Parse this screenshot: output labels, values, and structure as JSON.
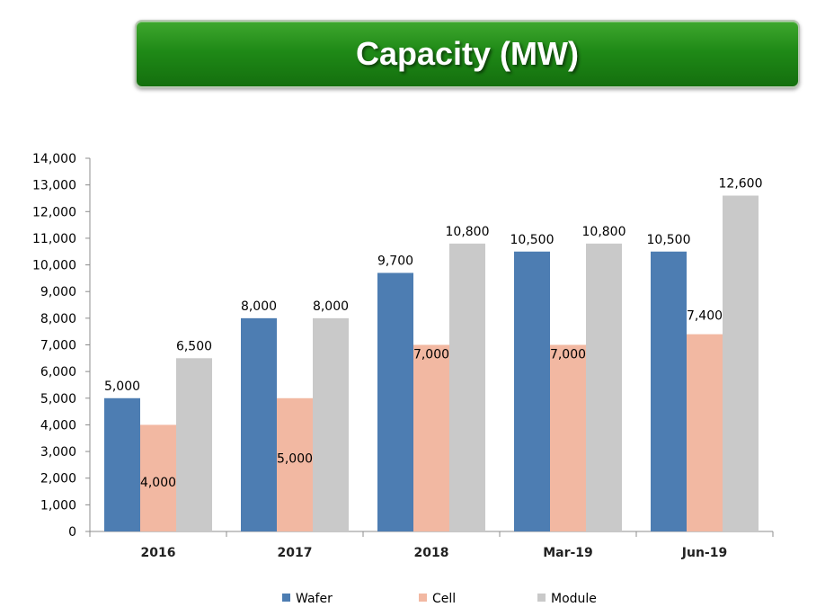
{
  "banner": {
    "title": "Capacity (MW)"
  },
  "colors": {
    "wafer": "#4d7db2",
    "cell": "#f2b8a2",
    "module": "#c9c9c9",
    "banner": "#1f8a17"
  },
  "chart_data": {
    "type": "bar",
    "title": "Capacity (MW)",
    "categories": [
      "2016",
      "2017",
      "2018",
      "Mar-19",
      "Jun-19"
    ],
    "series": [
      {
        "name": "Wafer",
        "values": [
          5000,
          8000,
          9700,
          10500,
          10500
        ],
        "labels": [
          "5,000",
          "8,000",
          "9,700",
          "10,500",
          "10,500"
        ]
      },
      {
        "name": "Cell",
        "values": [
          4000,
          5000,
          7000,
          7000,
          7400
        ],
        "labels": [
          "4,000",
          "5,000",
          "7,000",
          "7,000",
          "7,400"
        ]
      },
      {
        "name": "Module",
        "values": [
          6500,
          8000,
          10800,
          10800,
          12600
        ],
        "labels": [
          "6,500",
          "8,000",
          "10,800",
          "10,800",
          "12,600"
        ]
      }
    ],
    "ylim": [
      0,
      14000
    ],
    "yticks": [
      0,
      1000,
      2000,
      3000,
      4000,
      5000,
      6000,
      7000,
      8000,
      9000,
      10000,
      11000,
      12000,
      13000,
      14000
    ],
    "ytick_labels": [
      "0",
      "1,000",
      "2,000",
      "3,000",
      "4,000",
      "5,000",
      "6,000",
      "7,000",
      "8,000",
      "9,000",
      "10,000",
      "11,000",
      "12,000",
      "13,000",
      "14,000"
    ],
    "xlabel": "",
    "ylabel": "",
    "grid": false,
    "legend": {
      "position": "bottom",
      "entries": [
        "Wafer",
        "Cell",
        "Module"
      ]
    }
  }
}
